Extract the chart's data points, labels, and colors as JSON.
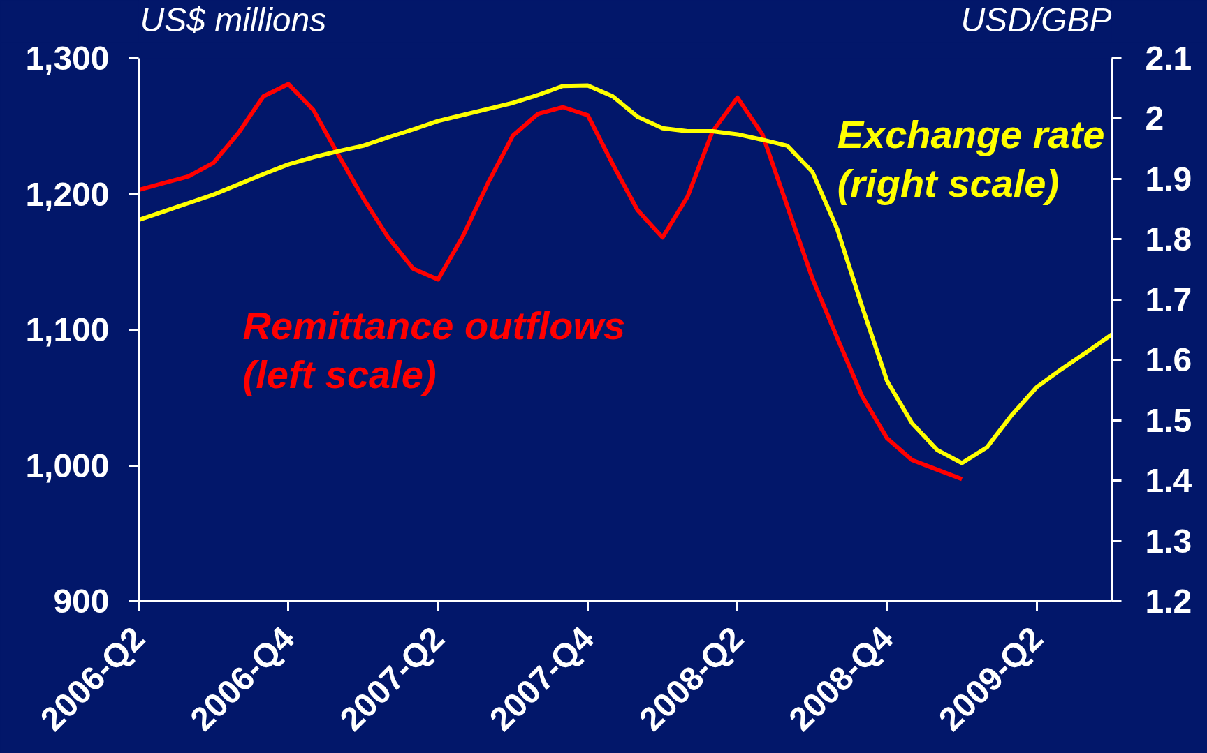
{
  "chart_data": {
    "type": "line",
    "ylabel": "US$ millions",
    "y2label": "USD/GBP",
    "line_style": "solid",
    "categories": [
      "2006-Q2",
      null,
      null,
      null,
      null,
      null,
      "2006-Q4",
      null,
      null,
      null,
      null,
      null,
      "2007-Q2",
      null,
      null,
      null,
      null,
      null,
      "2007-Q4",
      null,
      null,
      null,
      null,
      null,
      "2008-Q2",
      null,
      null,
      null,
      null,
      null,
      "2008-Q4",
      null,
      null,
      null,
      null,
      null,
      "2009-Q2",
      null,
      null,
      null
    ],
    "ylim": [
      900,
      1300
    ],
    "yticks": [
      900,
      {
        "value": 1000,
        "label": "1,000"
      },
      {
        "value": 1100,
        "label": "1,100"
      },
      {
        "value": 1200,
        "label": "1,200"
      },
      {
        "value": 1300,
        "label": "1,300"
      }
    ],
    "y2lim": [
      1.2,
      2.1
    ],
    "y2ticks": [
      1.2,
      1.3,
      1.4,
      1.5,
      1.6,
      1.7,
      1.8,
      1.9,
      2,
      2.1
    ],
    "series": [
      {
        "name": "Remittance outflows (left scale)",
        "color": "#ff0000",
        "values": [
          1203,
          1208,
          1213,
          1223,
          1245,
          1272,
          1281,
          1262,
          1229,
          1197,
          1168,
          1145,
          1137,
          1169,
          1208,
          1243,
          1259,
          1264,
          1258,
          1222,
          1188,
          1168,
          1198,
          1246,
          1271,
          1244,
          1191,
          1138,
          1094,
          1051,
          1020,
          1004,
          997,
          990,
          null,
          null,
          null,
          null,
          null,
          null
        ]
      },
      {
        "name": "Exchange rate (right scale)",
        "color": "#ffff00",
        "axis": "y2",
        "values": [
          1.832,
          1.846,
          1.86,
          1.874,
          1.891,
          1.908,
          1.924,
          1.936,
          1.946,
          1.955,
          1.969,
          1.982,
          1.996,
          2.006,
          2.016,
          2.026,
          2.039,
          2.054,
          2.055,
          2.037,
          2.003,
          1.984,
          1.979,
          1.979,
          1.974,
          1.965,
          1.955,
          1.912,
          1.817,
          1.688,
          1.565,
          1.495,
          1.451,
          1.429,
          1.455,
          1.509,
          1.555,
          1.585,
          1.613,
          1.642
        ]
      }
    ]
  }
}
